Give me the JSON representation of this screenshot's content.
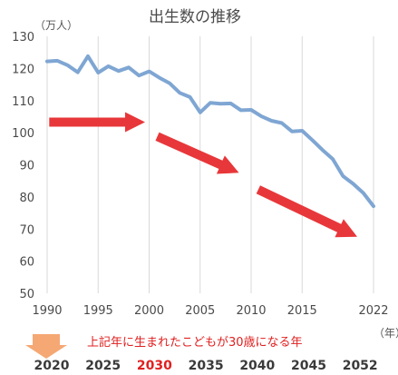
{
  "chart_data": {
    "type": "line",
    "title": "出生数の推移",
    "ylabel": "（万人）",
    "xlabel": "（年）",
    "ylim": [
      50,
      130
    ],
    "yticks": [
      50,
      60,
      70,
      80,
      90,
      100,
      110,
      120,
      130
    ],
    "xlim": [
      1990,
      2022
    ],
    "xticks": [
      "1990",
      "1995",
      "2000",
      "2005",
      "2010",
      "2015",
      "2022"
    ],
    "grid": "vertical",
    "series": [
      {
        "color": "#7fa6d3",
        "x": [
          1990,
          1991,
          1992,
          1993,
          1994,
          1995,
          1996,
          1997,
          1998,
          1999,
          2000,
          2001,
          2002,
          2003,
          2004,
          2005,
          2006,
          2007,
          2008,
          2009,
          2010,
          2011,
          2012,
          2013,
          2014,
          2015,
          2016,
          2017,
          2018,
          2019,
          2020,
          2021,
          2022
        ],
        "values": [
          122.2,
          122.4,
          121.0,
          118.8,
          123.8,
          118.7,
          120.7,
          119.2,
          120.3,
          117.8,
          119.1,
          117.1,
          115.4,
          112.4,
          111.1,
          106.3,
          109.3,
          109.0,
          109.1,
          107.0,
          107.1,
          105.1,
          103.7,
          103.0,
          100.4,
          100.6,
          97.7,
          94.6,
          91.8,
          86.5,
          84.1,
          81.2,
          77.1
        ]
      }
    ],
    "arrows_color": "#e8373a"
  },
  "bottom_note": {
    "text": "上記年に生まれたこどもが30歳になる年",
    "arrow_color": "#f5a874",
    "years": [
      "2020",
      "2025",
      "2030",
      "2035",
      "2040",
      "2045",
      "2052"
    ],
    "highlight_year": "2030"
  }
}
